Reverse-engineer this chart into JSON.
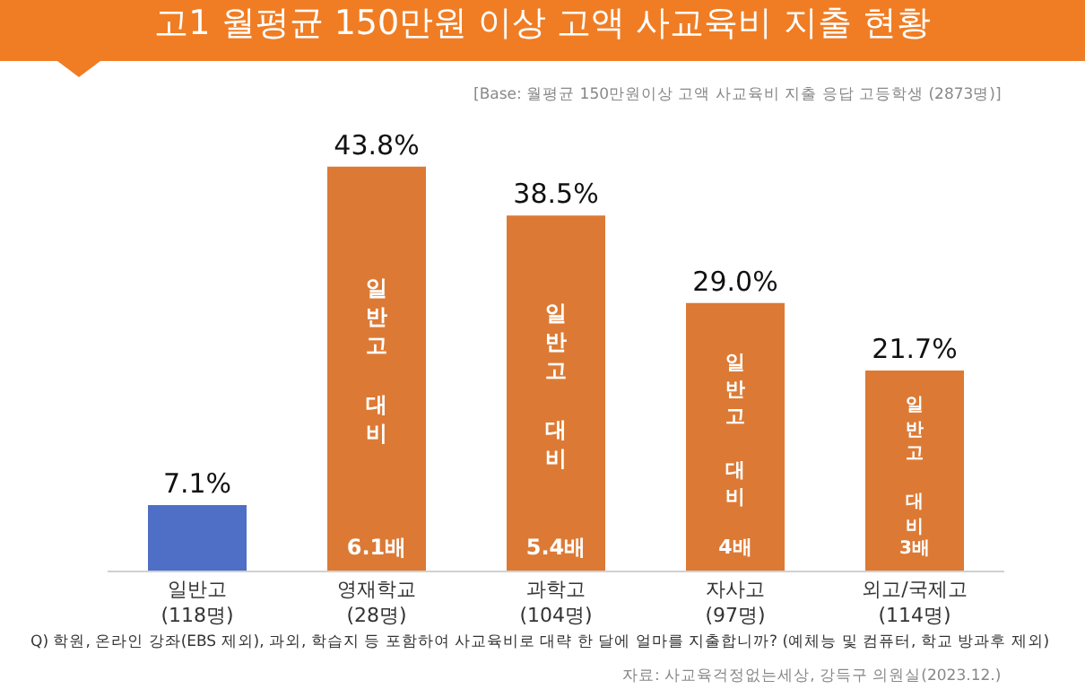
{
  "chart_data": {
    "type": "bar",
    "title": "고1 월평균 150만원 이상 고액 사교육비 지출 현황",
    "subtitle": "[Base: 월평균 150만원이상 고액 사교육비 지출 응답 고등학생 (2873명)]",
    "categories": [
      "일반고\n(118명)",
      "영재학교\n(28명)",
      "과학고\n(104명)",
      "자사고\n(97명)",
      "외고/국제고\n(114명)"
    ],
    "values": [
      7.1,
      43.8,
      38.5,
      29.0,
      21.7
    ],
    "colors": [
      "#4f6fc6",
      "#dc7a35",
      "#dc7a35",
      "#dc7a35",
      "#dc7a35"
    ],
    "value_labels": [
      "7.1%",
      "43.8%",
      "38.5%",
      "29.0%",
      "21.7%"
    ],
    "tick_labels": "x",
    "annotations": [
      "일반고 대비",
      "6.1배",
      "일반고 대비",
      "5.4배",
      "일반고 대비",
      "4배",
      "일반고 대비",
      "3배",
      "Q) 학원, 온라인 강좌(EBS 제외), 과외, 학습지 등 포함하여 사교육비로 대략 한 달에 얼마를 지출합니까? (예체능 및 컴퓨터, 학교 방과후 제외)",
      "자료: 사교육걱정없는세상, 강득구 의원실(2023.12.)"
    ]
  }
}
